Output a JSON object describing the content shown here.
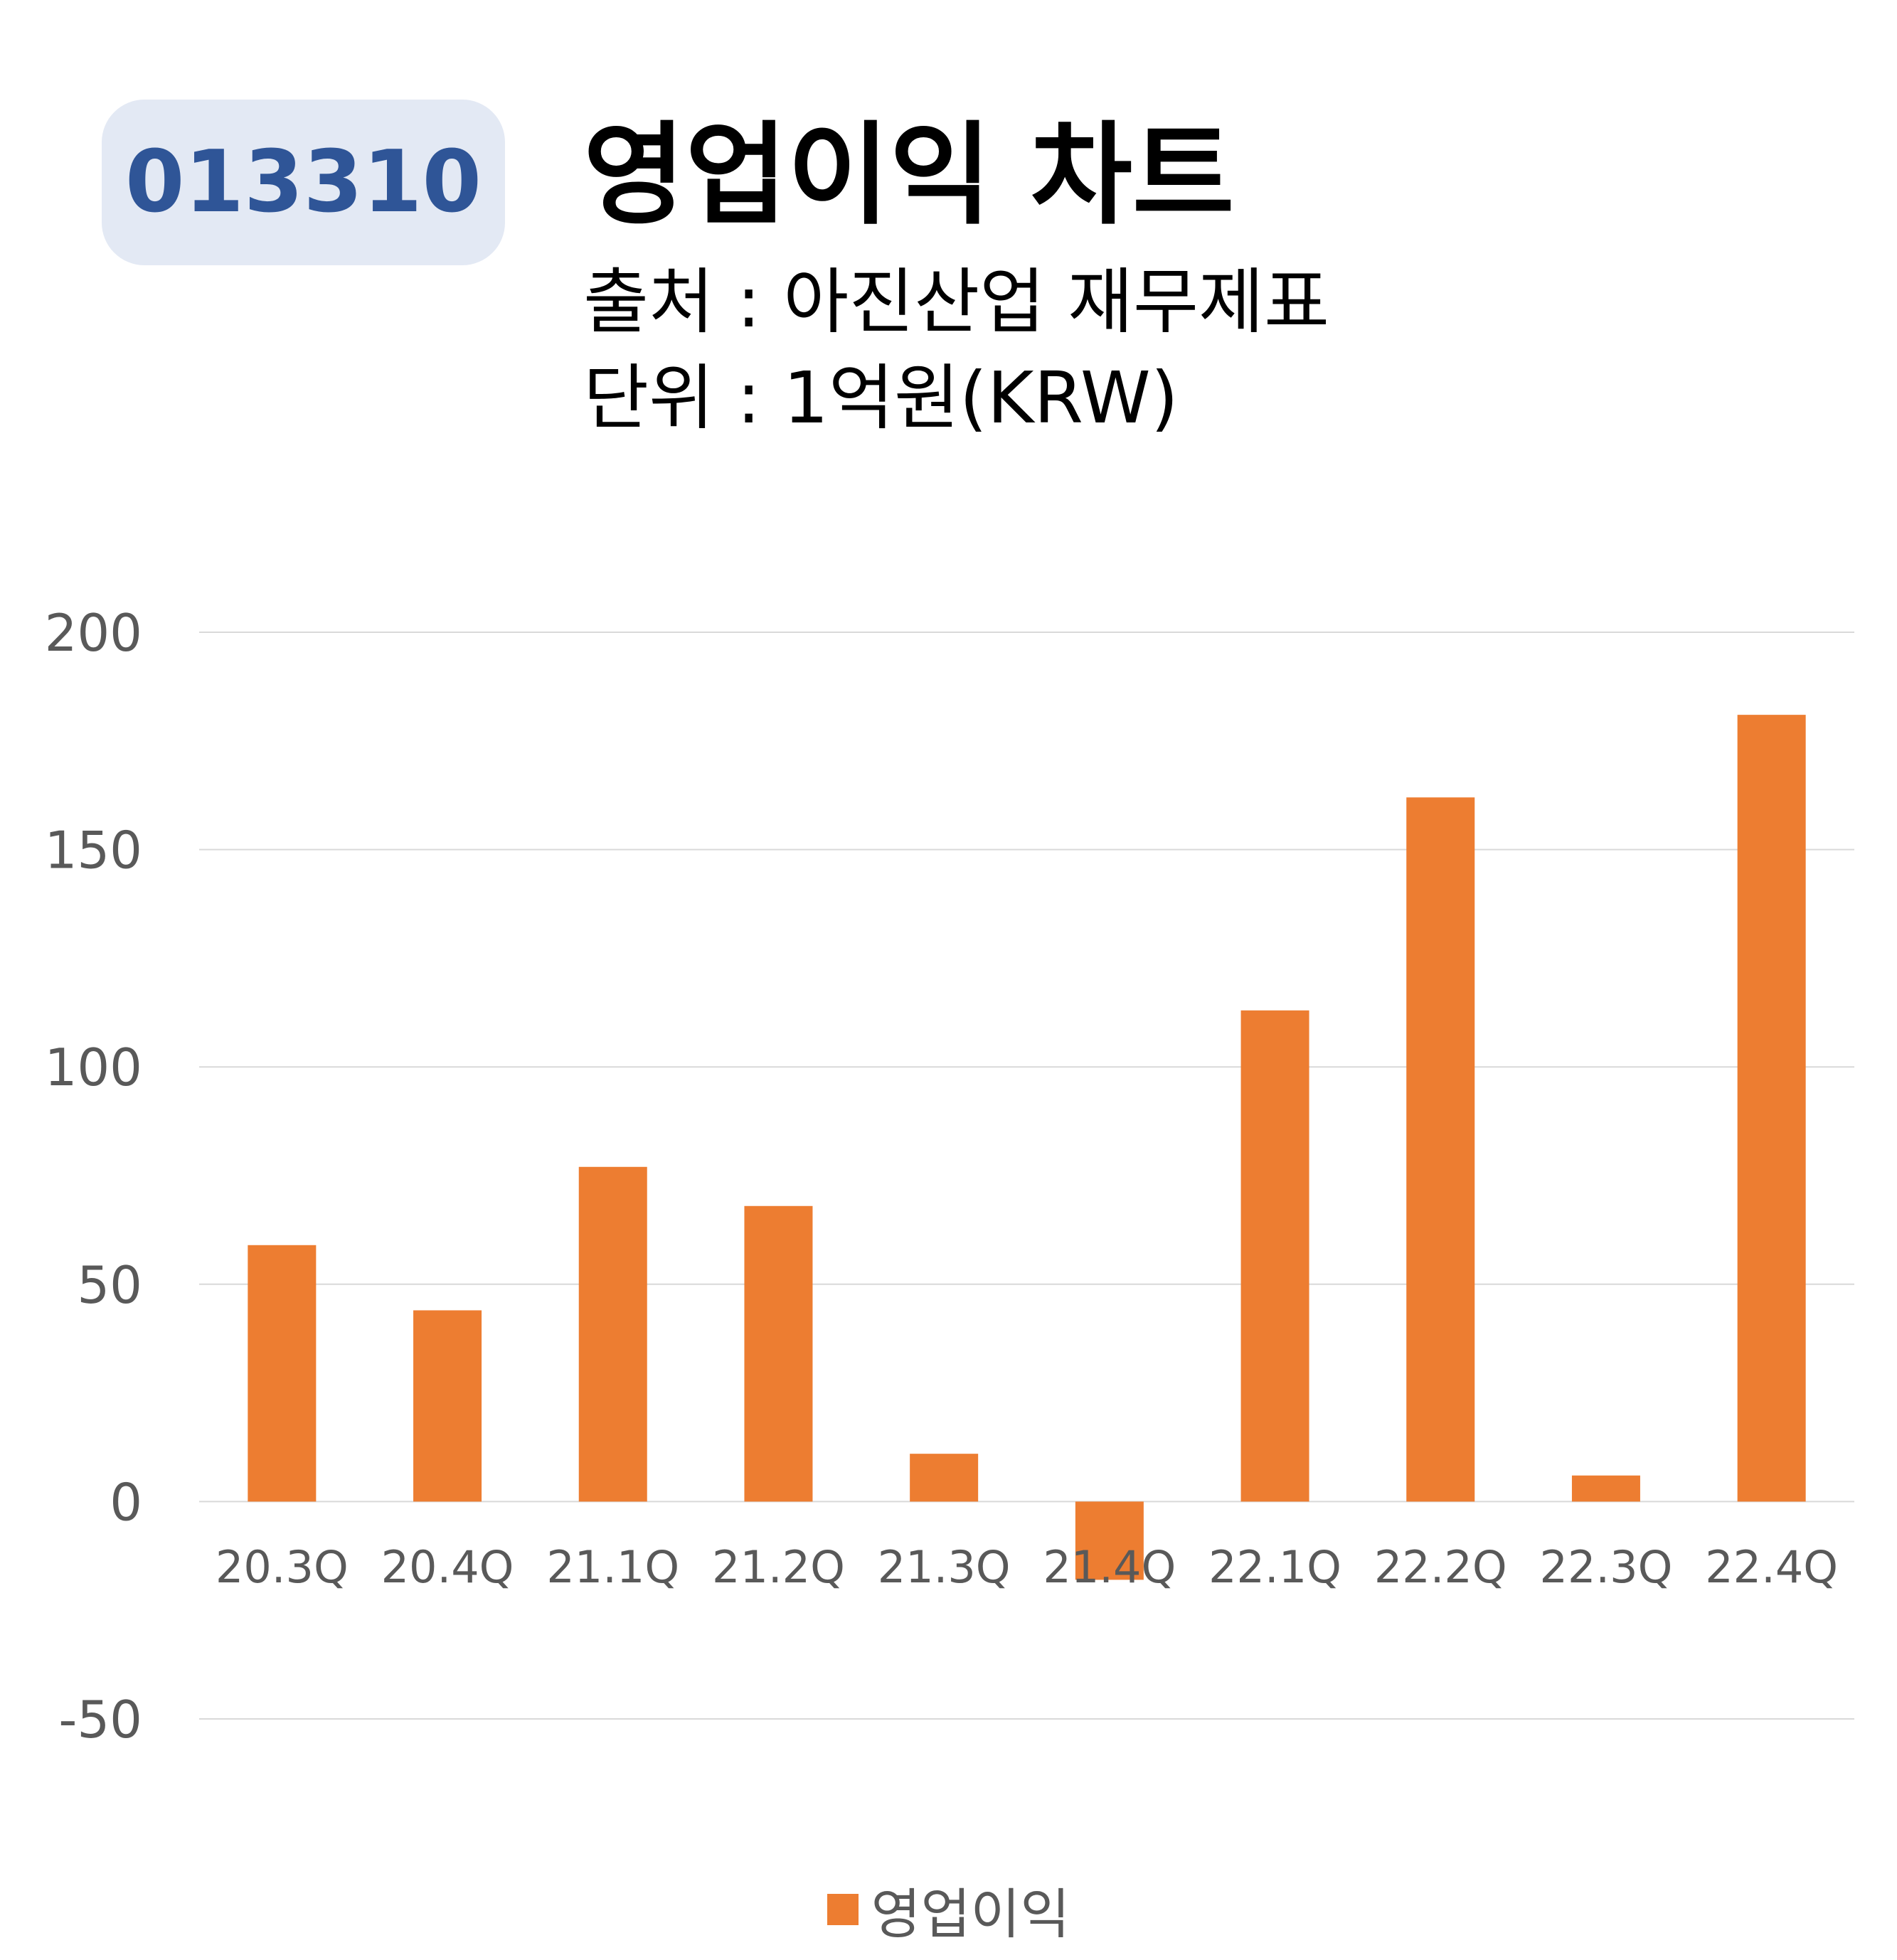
{
  "badge": {
    "code": "013310",
    "bg_color": "#e3e9f4",
    "text_color": "#2f5597"
  },
  "header": {
    "title": "영업이익 차트",
    "source": "출처 : 아진산업 재무제표",
    "unit": "단위 : 1억원(KRW)"
  },
  "chart_data": {
    "type": "bar",
    "categories": [
      "20.3Q",
      "20.4Q",
      "21.1Q",
      "21.2Q",
      "21.3Q",
      "21.4Q",
      "22.1Q",
      "22.2Q",
      "22.3Q",
      "22.4Q"
    ],
    "series": [
      {
        "name": "영업이익",
        "color": "#ed7d31",
        "values": [
          59,
          44,
          77,
          68,
          11,
          -18,
          113,
          162,
          6,
          181
        ]
      }
    ],
    "ylim": [
      -50,
      200
    ],
    "yticks": [
      200,
      150,
      100,
      50,
      0,
      -50
    ],
    "grid": true,
    "legend_position": "bottom"
  }
}
